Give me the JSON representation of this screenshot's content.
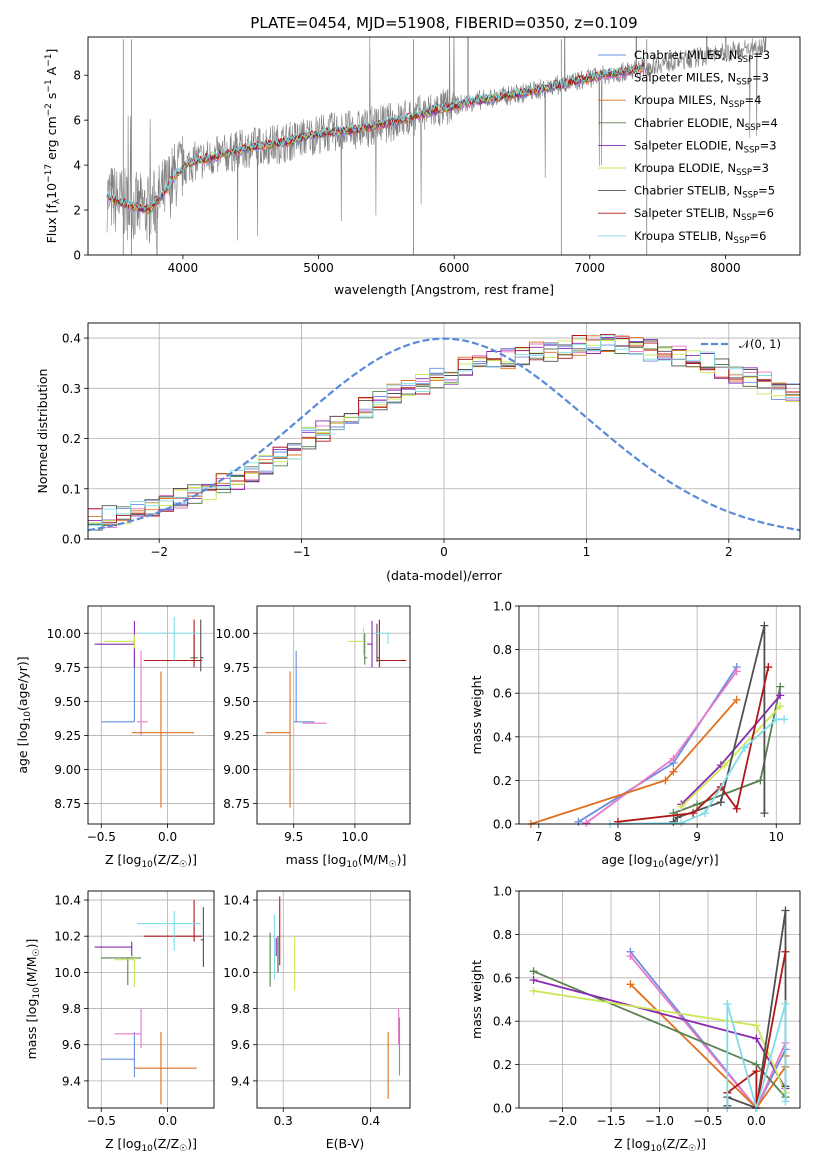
{
  "figure": {
    "title": "PLATE=0454, MJD=51908, FIBERID=0350, z=0.109"
  },
  "models": [
    {
      "label": "Chabrier MILES, N_SSP=3",
      "base": "Chabrier MILES, N",
      "sub": "SSP",
      "tail": "=3",
      "color": "#6a8fe0"
    },
    {
      "label": "Salpeter MILES, N_SSP=3",
      "base": "Salpeter MILES, N",
      "sub": "SSP",
      "tail": "=3",
      "color": "#e878c8"
    },
    {
      "label": "Kroupa MILES, N_SSP=4",
      "base": "Kroupa MILES, N",
      "sub": "SSP",
      "tail": "=4",
      "color": "#e07020"
    },
    {
      "label": "Chabrier ELODIE, N_SSP=4",
      "base": "Chabrier ELODIE, N",
      "sub": "SSP",
      "tail": "=4",
      "color": "#5a8050"
    },
    {
      "label": "Salpeter ELODIE, N_SSP=3",
      "base": "Salpeter ELODIE, N",
      "sub": "SSP",
      "tail": "=3",
      "color": "#8a2ab0"
    },
    {
      "label": "Kroupa ELODIE, N_SSP=3",
      "base": "Kroupa ELODIE, N",
      "sub": "SSP",
      "tail": "=3",
      "color": "#c8e858"
    },
    {
      "label": "Chabrier STELIB, N_SSP=5",
      "base": "Chabrier STELIB, N",
      "sub": "SSP",
      "tail": "=5",
      "color": "#505050"
    },
    {
      "label": "Salpeter STELIB, N_SSP=6",
      "base": "Salpeter STELIB, N",
      "sub": "SSP",
      "tail": "=6",
      "color": "#b01818"
    },
    {
      "label": "Kroupa STELIB, N_SSP=6",
      "base": "Kroupa STELIB, N",
      "sub": "SSP",
      "tail": "=6",
      "color": "#80dce8"
    }
  ],
  "chart_data": [
    {
      "id": "spectrum",
      "type": "line",
      "title": "PLATE=0454, MJD=51908, FIBERID=0350, z=0.109",
      "xlabel": "wavelength [Angstrom, rest frame]",
      "ylabel": "Flux [f_λ 10^-17 erg cm^-2 s^-1 A^-1]",
      "xlim": [
        3300,
        8550
      ],
      "ylim": [
        0,
        9.7
      ],
      "xticks": [
        4000,
        5000,
        6000,
        7000,
        8000
      ],
      "yticks": [
        0,
        2,
        4,
        6,
        8
      ],
      "grid": false,
      "legend": "top-right",
      "data_color": "#808080",
      "continuum": {
        "x": [
          3440,
          3600,
          3750,
          3850,
          3950,
          4050,
          4250,
          4500,
          4750,
          5000,
          5300,
          5600,
          5900,
          6200,
          6500,
          6800,
          7100,
          7300,
          7500,
          7800,
          8100,
          8300
        ],
        "y": [
          2.6,
          2.2,
          2.0,
          2.7,
          3.6,
          4.1,
          4.4,
          4.8,
          5.0,
          5.4,
          5.6,
          6.0,
          6.5,
          6.9,
          7.2,
          7.6,
          8.0,
          8.2,
          8.5,
          8.8,
          9.1,
          9.4
        ]
      },
      "model_range": [
        3440,
        7400
      ]
    },
    {
      "id": "residuals",
      "type": "histogram",
      "xlabel": "(data-model)/error",
      "ylabel": "Normed distribution",
      "xlim": [
        -2.5,
        2.5
      ],
      "ylim": [
        0,
        0.43
      ],
      "xticks": [
        -2,
        -1,
        0,
        1,
        2
      ],
      "yticks": [
        0.0,
        0.1,
        0.2,
        0.3,
        0.4
      ],
      "grid": true,
      "legend": "top-right",
      "reference_curve": {
        "label": "𝒩(0, 1)",
        "mean": 0,
        "sigma": 1,
        "color": "#5b8ad8"
      },
      "bin_width": 0.1,
      "bin_start": -2.5,
      "base_density": [
        0.04,
        0.045,
        0.05,
        0.055,
        0.06,
        0.07,
        0.08,
        0.09,
        0.1,
        0.11,
        0.12,
        0.135,
        0.15,
        0.165,
        0.18,
        0.2,
        0.215,
        0.23,
        0.245,
        0.26,
        0.275,
        0.29,
        0.3,
        0.31,
        0.32,
        0.33,
        0.34,
        0.35,
        0.355,
        0.36,
        0.365,
        0.37,
        0.375,
        0.38,
        0.385,
        0.39,
        0.39,
        0.385,
        0.38,
        0.375,
        0.37,
        0.365,
        0.36,
        0.35,
        0.34,
        0.33,
        0.32,
        0.31,
        0.3,
        0.29,
        0.28,
        0.265,
        0.25,
        0.235,
        0.22,
        0.205,
        0.19,
        0.175,
        0.16,
        0.15,
        0.14,
        0.13,
        0.12,
        0.11,
        0.1,
        0.09,
        0.085,
        0.08,
        0.075,
        0.07,
        0.065,
        0.06,
        0.055,
        0.05,
        0.048,
        0.046,
        0.044,
        0.042,
        0.04,
        0.038,
        0.036,
        0.035,
        0.034,
        0.033,
        0.032,
        0.031,
        0.03,
        0.03,
        0.03,
        0.03
      ]
    },
    {
      "id": "age-vs-Z",
      "type": "errorbar",
      "xlabel": "Z [log10(Z/Z☉)]",
      "ylabel": "age  [log10(age/yr)]",
      "xlim": [
        -0.6,
        0.35
      ],
      "ylim": [
        8.6,
        10.2
      ],
      "xticks": [
        -0.5,
        0.0
      ],
      "yticks": [
        8.75,
        9.0,
        9.25,
        9.5,
        9.75,
        10.0
      ],
      "grid": true,
      "points": [
        {
          "model": 0,
          "x": -0.25,
          "xerr": [
            0.25,
            0.0
          ],
          "y": 9.35,
          "yerr": [
            0.0,
            0.52
          ]
        },
        {
          "model": 1,
          "x": -0.2,
          "xerr": [
            0.03,
            0.05
          ],
          "y": 9.35,
          "yerr": [
            0.1,
            0.52
          ]
        },
        {
          "model": 2,
          "x": -0.05,
          "xerr": [
            0.22,
            0.25
          ],
          "y": 9.27,
          "yerr": [
            0.55,
            0.45
          ]
        },
        {
          "model": 3,
          "x": 0.2,
          "xerr": [
            0.03,
            0.03
          ],
          "y": 9.82,
          "yerr": [
            0.03,
            0.18
          ]
        },
        {
          "model": 4,
          "x": -0.25,
          "xerr": [
            0.3,
            0.0
          ],
          "y": 9.92,
          "yerr": [
            0.17,
            0.17
          ]
        },
        {
          "model": 5,
          "x": -0.25,
          "xerr": [
            0.23,
            0.0
          ],
          "y": 9.94,
          "yerr": [
            0.05,
            0.05
          ]
        },
        {
          "model": 6,
          "x": 0.25,
          "xerr": [
            0.0,
            0.02
          ],
          "y": 9.82,
          "yerr": [
            0.1,
            0.28
          ]
        },
        {
          "model": 7,
          "x": 0.2,
          "xerr": [
            0.38,
            0.06
          ],
          "y": 9.8,
          "yerr": [
            0.05,
            0.3
          ]
        },
        {
          "model": 8,
          "x": 0.05,
          "xerr": [
            0.28,
            0.18
          ],
          "y": 10.0,
          "yerr": [
            0.2,
            0.12
          ]
        }
      ]
    },
    {
      "id": "age-vs-mass",
      "type": "errorbar",
      "xlabel": "mass [log10(M/M☉)]",
      "ylabel": "",
      "xlim": [
        9.2,
        10.45
      ],
      "ylim": [
        8.6,
        10.2
      ],
      "xticks": [
        9.5,
        10.0
      ],
      "yticks": [
        8.75,
        9.0,
        9.25,
        9.5,
        9.75,
        10.0
      ],
      "grid": true,
      "points": [
        {
          "model": 0,
          "x": 9.52,
          "xerr": [
            0.02,
            0.15
          ],
          "y": 9.35,
          "yerr": [
            0.0,
            0.52
          ]
        },
        {
          "model": 1,
          "x": 9.67,
          "xerr": [
            0.1,
            0.1
          ],
          "y": 9.34,
          "yerr": [
            0.0,
            0.0
          ]
        },
        {
          "model": 2,
          "x": 9.47,
          "xerr": [
            0.2,
            0.0
          ],
          "y": 9.27,
          "yerr": [
            0.55,
            0.45
          ]
        },
        {
          "model": 3,
          "x": 10.08,
          "xerr": [
            0.0,
            0.02
          ],
          "y": 9.82,
          "yerr": [
            0.05,
            0.18
          ]
        },
        {
          "model": 4,
          "x": 10.14,
          "xerr": [
            0.04,
            0.0
          ],
          "y": 9.92,
          "yerr": [
            0.17,
            0.17
          ]
        },
        {
          "model": 5,
          "x": 10.07,
          "xerr": [
            0.13,
            0.0
          ],
          "y": 9.94,
          "yerr": [
            0.1,
            0.1
          ]
        },
        {
          "model": 6,
          "x": 10.18,
          "xerr": [
            0.0,
            0.02
          ],
          "y": 9.82,
          "yerr": [
            0.03,
            0.25
          ]
        },
        {
          "model": 7,
          "x": 10.2,
          "xerr": [
            0.02,
            0.22
          ],
          "y": 9.8,
          "yerr": [
            0.05,
            0.3
          ]
        },
        {
          "model": 8,
          "x": 10.27,
          "xerr": [
            0.12,
            0.02
          ],
          "y": 10.0,
          "yerr": [
            0.08,
            0.0
          ]
        }
      ]
    },
    {
      "id": "weight-vs-age",
      "type": "line",
      "xlabel": "age  [log10(age/yr)]",
      "ylabel": "mass weight",
      "xlim": [
        6.75,
        10.3
      ],
      "ylim": [
        0,
        1.0
      ],
      "xticks": [
        7,
        8,
        9,
        10
      ],
      "yticks": [
        0.0,
        0.2,
        0.4,
        0.6,
        0.8,
        1.0
      ],
      "grid": true,
      "series": [
        {
          "model": 0,
          "x": [
            7.5,
            8.7,
            9.5
          ],
          "y": [
            0.01,
            0.28,
            0.72
          ]
        },
        {
          "model": 1,
          "x": [
            7.6,
            8.7,
            9.5
          ],
          "y": [
            0.005,
            0.3,
            0.7
          ]
        },
        {
          "model": 2,
          "x": [
            6.9,
            8.6,
            8.7,
            9.5
          ],
          "y": [
            0.0,
            0.2,
            0.24,
            0.57
          ]
        },
        {
          "model": 3,
          "x": [
            8.7,
            9.0,
            9.8,
            10.05
          ],
          "y": [
            0.05,
            0.09,
            0.2,
            0.63
          ]
        },
        {
          "model": 4,
          "x": [
            8.8,
            9.3,
            10.05
          ],
          "y": [
            0.09,
            0.27,
            0.59
          ]
        },
        {
          "model": 5,
          "x": [
            8.8,
            9.35,
            10.05
          ],
          "y": [
            0.08,
            0.27,
            0.54
          ]
        },
        {
          "model": 6,
          "x": [
            8.7,
            8.75,
            9.3,
            9.85,
            9.85
          ],
          "y": [
            0.01,
            0.03,
            0.1,
            0.91,
            0.05
          ]
        },
        {
          "model": 7,
          "x": [
            8.0,
            8.95,
            9.3,
            9.5,
            9.9
          ],
          "y": [
            0.01,
            0.05,
            0.17,
            0.07,
            0.72
          ]
        },
        {
          "model": 8,
          "x": [
            7.9,
            8.8,
            9.1,
            9.6,
            10.0,
            10.1
          ],
          "y": [
            0.0,
            0.005,
            0.05,
            0.35,
            0.48,
            0.48
          ]
        }
      ]
    },
    {
      "id": "mass-vs-Z",
      "type": "errorbar",
      "xlabel": "Z [log10(Z/Z☉)]",
      "ylabel": "mass [log10(M/M☉)]",
      "xlim": [
        -0.6,
        0.35
      ],
      "ylim": [
        9.25,
        10.45
      ],
      "xticks": [
        -0.5,
        0.0
      ],
      "yticks": [
        9.4,
        9.6,
        9.8,
        10.0,
        10.2,
        10.4
      ],
      "grid": true,
      "points": [
        {
          "model": 0,
          "x": -0.25,
          "xerr": [
            0.25,
            0.0
          ],
          "y": 9.52,
          "yerr": [
            0.1,
            0.15
          ]
        },
        {
          "model": 1,
          "x": -0.2,
          "xerr": [
            0.2,
            0.0
          ],
          "y": 9.66,
          "yerr": [
            0.08,
            0.14
          ]
        },
        {
          "model": 2,
          "x": -0.05,
          "xerr": [
            0.2,
            0.27
          ],
          "y": 9.47,
          "yerr": [
            0.2,
            0.2
          ]
        },
        {
          "model": 3,
          "x": -0.3,
          "xerr": [
            0.2,
            0.1
          ],
          "y": 10.08,
          "yerr": [
            0.15,
            0.0
          ]
        },
        {
          "model": 4,
          "x": -0.27,
          "xerr": [
            0.28,
            0.0
          ],
          "y": 10.14,
          "yerr": [
            0.05,
            0.03
          ]
        },
        {
          "model": 5,
          "x": -0.25,
          "xerr": [
            0.15,
            0.0
          ],
          "y": 10.07,
          "yerr": [
            0.15,
            0.02
          ]
        },
        {
          "model": 6,
          "x": 0.27,
          "xerr": [
            0.02,
            0.0
          ],
          "y": 10.18,
          "yerr": [
            0.15,
            0.18
          ]
        },
        {
          "model": 7,
          "x": 0.2,
          "xerr": [
            0.38,
            0.06
          ],
          "y": 10.2,
          "yerr": [
            0.03,
            0.2
          ]
        },
        {
          "model": 8,
          "x": 0.05,
          "xerr": [
            0.28,
            0.2
          ],
          "y": 10.27,
          "yerr": [
            0.15,
            0.07
          ]
        }
      ]
    },
    {
      "id": "mass-vs-EBV",
      "type": "errorbar",
      "xlabel": "E(B-V)",
      "ylabel": "",
      "xlim": [
        0.27,
        0.445
      ],
      "ylim": [
        9.25,
        10.45
      ],
      "xticks": [
        0.3,
        0.4
      ],
      "yticks": [
        9.4,
        9.6,
        9.8,
        10.0,
        10.2,
        10.4
      ],
      "grid": true,
      "points": [
        {
          "model": 0,
          "x": 0.433,
          "xerr": [
            0,
            0
          ],
          "y": 9.6,
          "yerr": [
            0.17,
            0.15
          ]
        },
        {
          "model": 1,
          "x": 0.432,
          "xerr": [
            0,
            0
          ],
          "y": 9.7,
          "yerr": [
            0.1,
            0.1
          ]
        },
        {
          "model": 2,
          "x": 0.42,
          "xerr": [
            0,
            0
          ],
          "y": 9.5,
          "yerr": [
            0.2,
            0.17
          ]
        },
        {
          "model": 3,
          "x": 0.285,
          "xerr": [
            0,
            0
          ],
          "y": 10.1,
          "yerr": [
            0.18,
            0.12
          ]
        },
        {
          "model": 4,
          "x": 0.292,
          "xerr": [
            0,
            0
          ],
          "y": 10.14,
          "yerr": [
            0.05,
            0.05
          ]
        },
        {
          "model": 5,
          "x": 0.313,
          "xerr": [
            0,
            0
          ],
          "y": 10.05,
          "yerr": [
            0.15,
            0.15
          ]
        },
        {
          "model": 6,
          "x": 0.294,
          "xerr": [
            0,
            0
          ],
          "y": 10.2,
          "yerr": [
            0.2,
            0.0
          ]
        },
        {
          "model": 7,
          "x": 0.296,
          "xerr": [
            0,
            0
          ],
          "y": 10.22,
          "yerr": [
            0.18,
            0.2
          ]
        },
        {
          "model": 8,
          "x": 0.29,
          "xerr": [
            0,
            0
          ],
          "y": 10.14,
          "yerr": [
            0.18,
            0.18
          ]
        }
      ]
    },
    {
      "id": "weight-vs-Z",
      "type": "line",
      "xlabel": "Z [log10(Z/Z☉)]",
      "ylabel": "mass weight",
      "xlim": [
        -2.45,
        0.45
      ],
      "ylim": [
        0,
        1.0
      ],
      "xticks": [
        -2.0,
        -1.5,
        -1.0,
        -0.5,
        0.0
      ],
      "yticks": [
        0.0,
        0.2,
        0.4,
        0.6,
        0.8,
        1.0
      ],
      "grid": true,
      "series": [
        {
          "model": 0,
          "x": [
            -1.3,
            0.0,
            0.3
          ],
          "y": [
            0.72,
            0.0,
            0.27
          ]
        },
        {
          "model": 1,
          "x": [
            -1.3,
            0.0,
            0.3
          ],
          "y": [
            0.7,
            0.0,
            0.3
          ]
        },
        {
          "model": 2,
          "x": [
            -1.3,
            0.0,
            0.3,
            0.3
          ],
          "y": [
            0.57,
            0.0,
            0.19,
            0.24
          ]
        },
        {
          "model": 3,
          "x": [
            -2.3,
            0.0,
            0.3
          ],
          "y": [
            0.63,
            0.2,
            0.05
          ]
        },
        {
          "model": 4,
          "x": [
            -2.3,
            0.0,
            0.3
          ],
          "y": [
            0.59,
            0.32,
            0.09
          ]
        },
        {
          "model": 5,
          "x": [
            -2.3,
            0.0,
            0.3
          ],
          "y": [
            0.54,
            0.38,
            0.07
          ]
        },
        {
          "model": 6,
          "x": [
            -0.3,
            -0.3,
            0.0,
            0.3,
            0.3
          ],
          "y": [
            0.01,
            0.05,
            0.0,
            0.91,
            0.1
          ]
        },
        {
          "model": 7,
          "x": [
            -0.3,
            0.0,
            0.0,
            0.3
          ],
          "y": [
            0.07,
            0.17,
            0.0,
            0.72
          ]
        },
        {
          "model": 8,
          "x": [
            -0.3,
            -0.3,
            0.0,
            0.3,
            0.3
          ],
          "y": [
            0.0,
            0.48,
            0.0,
            0.48,
            0.03
          ]
        }
      ]
    }
  ]
}
